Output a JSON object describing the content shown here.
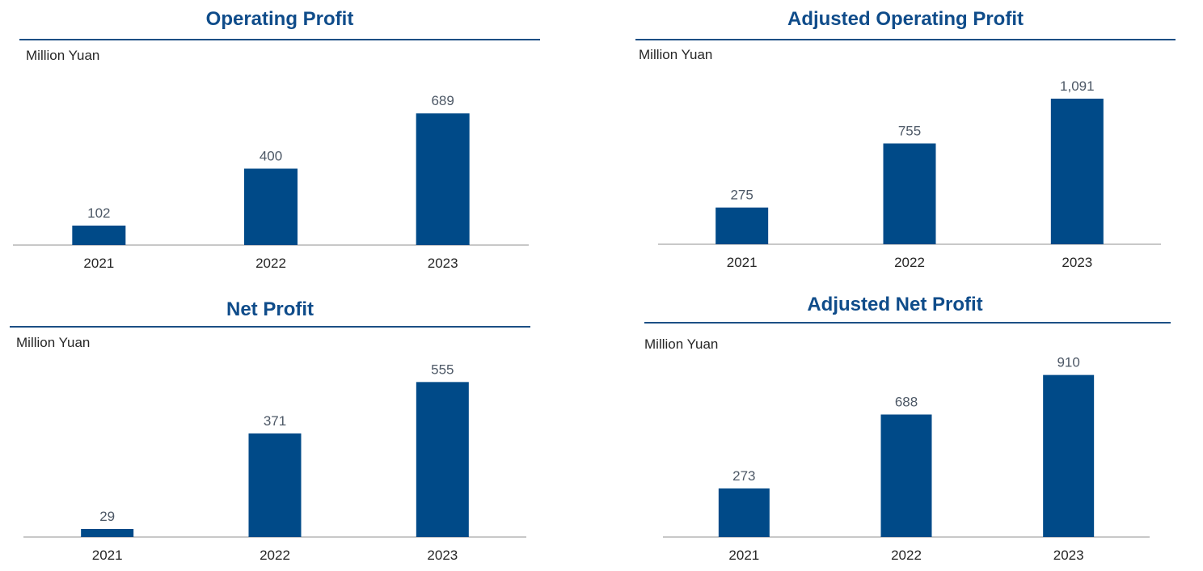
{
  "colors": {
    "bar": "#004a88",
    "title": "#0f4c8a",
    "rule": "#1c4f85",
    "axis": "#a6a6a6",
    "value_label": "#4d5866",
    "tick_label": "#262626"
  },
  "chart_data": [
    {
      "type": "bar",
      "title": "Operating Profit",
      "unit": "Million Yuan",
      "categories": [
        "2021",
        "2022",
        "2023"
      ],
      "values": [
        102,
        400,
        689
      ],
      "value_labels": [
        "102",
        "400",
        "689"
      ],
      "ylim": [
        0,
        800
      ],
      "grid": false,
      "legend": "none"
    },
    {
      "type": "bar",
      "title": "Adjusted Operating Profit",
      "unit": "Million Yuan",
      "categories": [
        "2021",
        "2022",
        "2023"
      ],
      "values": [
        275,
        755,
        1091
      ],
      "value_labels": [
        "275",
        "755",
        "1,091"
      ],
      "ylim": [
        0,
        1200
      ],
      "grid": false,
      "legend": "none"
    },
    {
      "type": "bar",
      "title": "Net Profit",
      "unit": "Million Yuan",
      "categories": [
        "2021",
        "2022",
        "2023"
      ],
      "values": [
        29,
        371,
        555
      ],
      "value_labels": [
        "29",
        "371",
        "555"
      ],
      "ylim": [
        0,
        640
      ],
      "grid": false,
      "legend": "none"
    },
    {
      "type": "bar",
      "title": "Adjusted Net Profit",
      "unit": "Million Yuan",
      "categories": [
        "2021",
        "2022",
        "2023"
      ],
      "values": [
        273,
        688,
        910
      ],
      "value_labels": [
        "273",
        "688",
        "910"
      ],
      "ylim": [
        0,
        1040
      ],
      "grid": false,
      "legend": "none"
    }
  ]
}
